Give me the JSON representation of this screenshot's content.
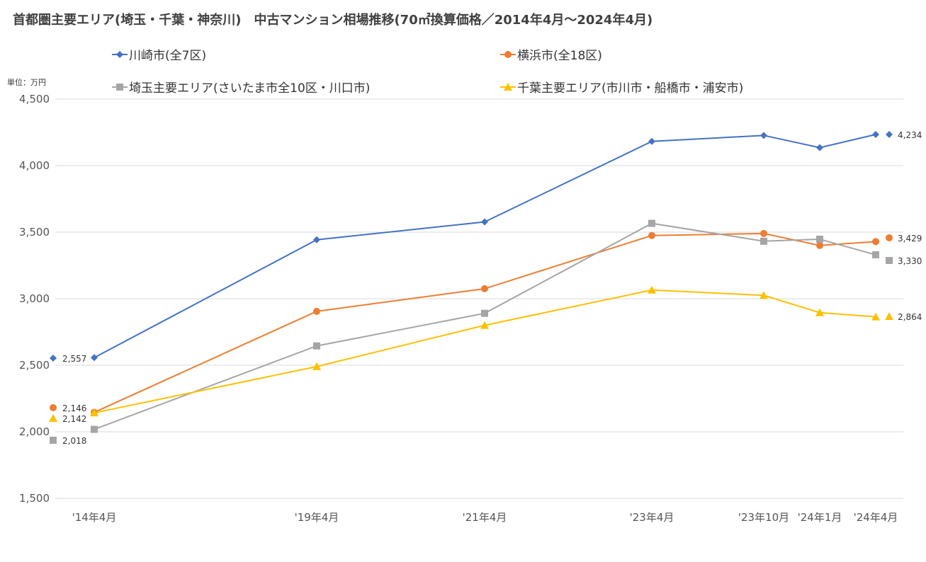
{
  "chart_data": {
    "type": "line",
    "title": "首都圏主要エリア(埼玉・千葉・神奈川)　中古マンション相場推移(70㎡換算価格／2014年4月～2024年4月)",
    "unit_label": "単位：万円",
    "categories": [
      "'14年4月",
      "'19年4月",
      "'21年4月",
      "'23年4月",
      "'23年10月",
      "'24年1月",
      "'24年4月"
    ],
    "ylim": [
      1500,
      4500
    ],
    "yticks": [
      "1,500",
      "2,000",
      "2,500",
      "3,000",
      "3,500",
      "4,000",
      "4,500"
    ],
    "series": [
      {
        "name": "川崎市(全7区)",
        "color": "#4472C4",
        "marker": "diamond",
        "values": [
          2557,
          3443,
          3577,
          4182,
          4227,
          4135,
          4234
        ],
        "start_label": "2,557",
        "end_label": "4,234"
      },
      {
        "name": "横浜市(全18区)",
        "color": "#ED7D31",
        "marker": "circle",
        "values": [
          2146,
          2905,
          3075,
          3475,
          3490,
          3400,
          3429
        ],
        "start_label": "2,146",
        "end_label": "3,429"
      },
      {
        "name": "埼玉主要エリア(さいたま市全10区・川口市)",
        "color": "#A5A5A5",
        "marker": "square",
        "values": [
          2018,
          2645,
          2890,
          3566,
          3432,
          3447,
          3330
        ],
        "start_label": "2,018",
        "end_label": "3,330"
      },
      {
        "name": "千葉主要エリア(市川市・船橋市・浦安市)",
        "color": "#FFC000",
        "marker": "triangle",
        "values": [
          2142,
          2490,
          2800,
          3065,
          3025,
          2895,
          2864
        ],
        "start_label": "2,142",
        "end_label": "2,864"
      }
    ]
  }
}
